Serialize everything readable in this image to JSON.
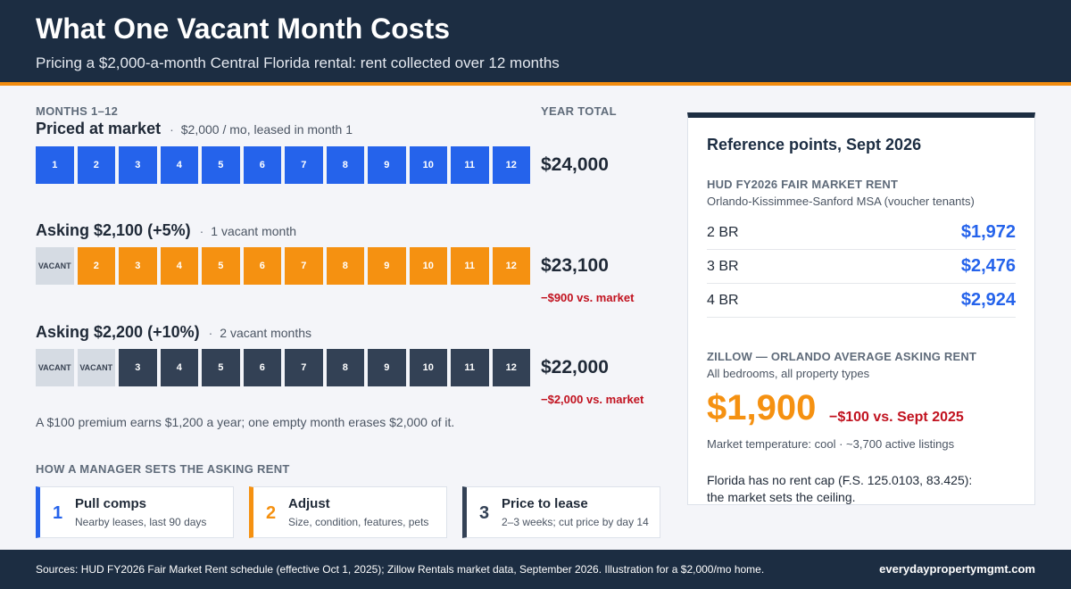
{
  "header": {
    "title": "What One Vacant Month Costs",
    "subtitle": "Pricing a $2,000-a-month Central Florida rental: rent collected over 12 months"
  },
  "labels": {
    "months": "MONTHS 1–12",
    "year_total": "YEAR TOTAL"
  },
  "scenarios": [
    {
      "name": "Priced at market",
      "detail": "$2,000 / mo, leased in month 1",
      "cells": [
        "1",
        "2",
        "3",
        "4",
        "5",
        "6",
        "7",
        "8",
        "9",
        "10",
        "11",
        "12"
      ],
      "vacant_count": 0,
      "total": "$24,000",
      "diff": "",
      "color": "#2563eb"
    },
    {
      "name": "Asking $2,100 (+5%)",
      "detail": "1 vacant month",
      "cells": [
        "VACANT",
        "2",
        "3",
        "4",
        "5",
        "6",
        "7",
        "8",
        "9",
        "10",
        "11",
        "12"
      ],
      "vacant_count": 1,
      "total": "$23,100",
      "diff": "−$900 vs. market",
      "color": "#f59111"
    },
    {
      "name": "Asking $2,200 (+10%)",
      "detail": "2 vacant months",
      "cells": [
        "VACANT",
        "VACANT",
        "3",
        "4",
        "5",
        "6",
        "7",
        "8",
        "9",
        "10",
        "11",
        "12"
      ],
      "vacant_count": 2,
      "total": "$22,000",
      "diff": "−$2,000 vs. market",
      "color": "#334155"
    }
  ],
  "note": "A $100 premium earns $1,200 a year; one empty month erases $2,000 of it.",
  "steps": {
    "label": "HOW A MANAGER SETS THE ASKING RENT",
    "items": [
      {
        "num": "1",
        "title": "Pull comps",
        "desc": "Nearby leases, last 90 days"
      },
      {
        "num": "2",
        "title": "Adjust",
        "desc": "Size, condition, features, pets"
      },
      {
        "num": "3",
        "title": "Price to lease",
        "desc": "2–3 weeks; cut price by day 14"
      }
    ]
  },
  "panel": {
    "title": "Reference points, Sept 2026",
    "hud_label": "HUD FY2026 FAIR MARKET RENT",
    "hud_sub": "Orlando-Kissimmee-Sanford MSA (voucher tenants)",
    "hud_rows": [
      {
        "br": "2 BR",
        "value": "$1,972"
      },
      {
        "br": "3 BR",
        "value": "$2,476"
      },
      {
        "br": "4 BR",
        "value": "$2,924"
      }
    ],
    "zillow_label": "ZILLOW — ORLANDO AVERAGE ASKING RENT",
    "zillow_sub": "All bedrooms, all property types",
    "zillow_value": "$1,900",
    "zillow_diff": "−$100 vs. Sept 2025",
    "temperature": "Market temperature: cool · ~3,700 active listings",
    "cap_line1": "Florida has no rent cap (F.S. 125.0103, 83.425):",
    "cap_line2": "the market sets the ceiling."
  },
  "footer": {
    "sources": "Sources: HUD FY2026 Fair Market Rent schedule (effective Oct 1, 2025); Zillow Rentals market data, September 2026. Illustration for a $2,000/mo home.",
    "site": "everydaypropertymgmt.com"
  }
}
